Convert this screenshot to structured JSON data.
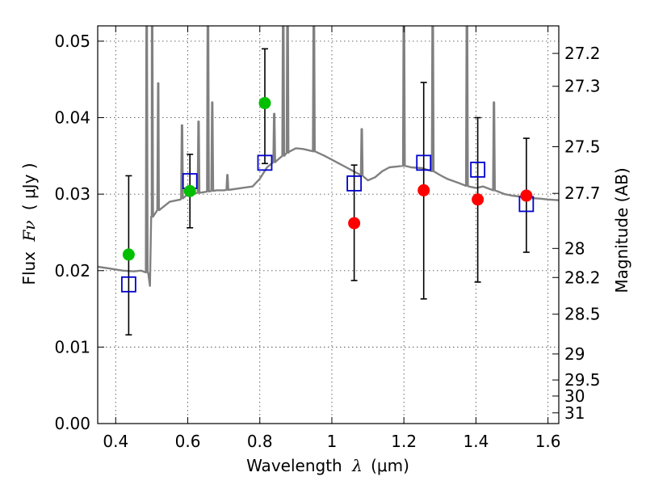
{
  "chart_data": {
    "type": "scatter",
    "xlabel_text": "Wavelength",
    "xlabel_symbol": "λ",
    "xlabel_unit": "(μm)",
    "ylabel_text": "Flux",
    "ylabel_symbol": "Fν",
    "ylabel_unit": "( μJy )",
    "y2label": "Magnitude (AB)",
    "xlim": [
      0.35,
      1.63
    ],
    "ylim": [
      0.0,
      0.052
    ],
    "grid": true,
    "x_ticks": [
      {
        "value": 0.4,
        "label": "0.4"
      },
      {
        "value": 0.6,
        "label": "0.6"
      },
      {
        "value": 0.8,
        "label": "0.8"
      },
      {
        "value": 1.0,
        "label": "1"
      },
      {
        "value": 1.2,
        "label": "1.2"
      },
      {
        "value": 1.4,
        "label": "1.4"
      },
      {
        "value": 1.6,
        "label": "1.6"
      }
    ],
    "y_ticks": [
      {
        "value": 0.0,
        "label": "0.00"
      },
      {
        "value": 0.01,
        "label": "0.01"
      },
      {
        "value": 0.02,
        "label": "0.02"
      },
      {
        "value": 0.03,
        "label": "0.03"
      },
      {
        "value": 0.04,
        "label": "0.04"
      },
      {
        "value": 0.05,
        "label": "0.05"
      }
    ],
    "y2_ticks": [
      {
        "flux": 0.0484,
        "label": "27.2"
      },
      {
        "flux": 0.0441,
        "label": "27.3"
      },
      {
        "flux": 0.0362,
        "label": "27.5"
      },
      {
        "flux": 0.0301,
        "label": "27.7"
      },
      {
        "flux": 0.0229,
        "label": "28"
      },
      {
        "flux": 0.0191,
        "label": "28.2"
      },
      {
        "flux": 0.0143,
        "label": "28.5"
      },
      {
        "flux": 0.0091,
        "label": "29"
      },
      {
        "flux": 0.0057,
        "label": "29.5"
      },
      {
        "flux": 0.0036,
        "label": "30"
      },
      {
        "flux": 0.0014,
        "label": "31"
      }
    ],
    "sed_model": {
      "color": "#808080",
      "continuum": [
        [
          0.35,
          0.0205
        ],
        [
          0.38,
          0.0203
        ],
        [
          0.42,
          0.02
        ],
        [
          0.45,
          0.0199
        ],
        [
          0.47,
          0.02
        ],
        [
          0.49,
          0.0197
        ],
        [
          0.495,
          0.018
        ],
        [
          0.5,
          0.027
        ],
        [
          0.52,
          0.028
        ],
        [
          0.55,
          0.029
        ],
        [
          0.58,
          0.0293
        ],
        [
          0.6,
          0.03
        ],
        [
          0.62,
          0.0301
        ],
        [
          0.65,
          0.0303
        ],
        [
          0.68,
          0.0305
        ],
        [
          0.7,
          0.0305
        ],
        [
          0.72,
          0.0306
        ],
        [
          0.75,
          0.0308
        ],
        [
          0.78,
          0.031
        ],
        [
          0.8,
          0.032
        ],
        [
          0.82,
          0.0335
        ],
        [
          0.85,
          0.0345
        ],
        [
          0.88,
          0.0355
        ],
        [
          0.9,
          0.036
        ],
        [
          0.92,
          0.0359
        ],
        [
          0.95,
          0.0356
        ],
        [
          0.98,
          0.035
        ],
        [
          1.0,
          0.0345
        ],
        [
          1.02,
          0.034
        ],
        [
          1.04,
          0.0335
        ],
        [
          1.06,
          0.033
        ],
        [
          1.08,
          0.0325
        ],
        [
          1.1,
          0.0318
        ],
        [
          1.12,
          0.0322
        ],
        [
          1.14,
          0.033
        ],
        [
          1.16,
          0.0335
        ],
        [
          1.18,
          0.0336
        ],
        [
          1.2,
          0.0337
        ],
        [
          1.22,
          0.0335
        ],
        [
          1.25,
          0.0334
        ],
        [
          1.28,
          0.033
        ],
        [
          1.3,
          0.0325
        ],
        [
          1.32,
          0.032
        ],
        [
          1.35,
          0.0315
        ],
        [
          1.38,
          0.031
        ],
        [
          1.4,
          0.0308
        ],
        [
          1.42,
          0.031
        ],
        [
          1.45,
          0.0305
        ],
        [
          1.48,
          0.03
        ],
        [
          1.5,
          0.0298
        ],
        [
          1.52,
          0.0297
        ],
        [
          1.55,
          0.0295
        ],
        [
          1.58,
          0.0294
        ],
        [
          1.6,
          0.0293
        ],
        [
          1.63,
          0.0292
        ]
      ],
      "emission_lines": [
        {
          "wavelength": 0.486,
          "peak": 0.058
        },
        {
          "wavelength": 0.501,
          "peak": 0.058
        },
        {
          "wavelength": 0.518,
          "peak": 0.0445
        },
        {
          "wavelength": 0.584,
          "peak": 0.039
        },
        {
          "wavelength": 0.63,
          "peak": 0.0395
        },
        {
          "wavelength": 0.656,
          "peak": 0.058
        },
        {
          "wavelength": 0.668,
          "peak": 0.042
        },
        {
          "wavelength": 0.71,
          "peak": 0.0325
        },
        {
          "wavelength": 0.84,
          "peak": 0.0405
        },
        {
          "wavelength": 0.865,
          "peak": 0.058
        },
        {
          "wavelength": 0.877,
          "peak": 0.058
        },
        {
          "wavelength": 0.95,
          "peak": 0.058
        },
        {
          "wavelength": 1.083,
          "peak": 0.0385
        },
        {
          "wavelength": 1.2,
          "peak": 0.058
        },
        {
          "wavelength": 1.28,
          "peak": 0.058
        },
        {
          "wavelength": 1.375,
          "peak": 0.058
        },
        {
          "wavelength": 1.45,
          "peak": 0.042
        }
      ]
    },
    "observed_detections": {
      "color": "#00bf00",
      "points": [
        {
          "x": 0.436,
          "y": 0.0221
        },
        {
          "x": 0.606,
          "y": 0.0304
        },
        {
          "x": 0.814,
          "y": 0.0419
        }
      ]
    },
    "observed_upper": {
      "color": "#ff0000",
      "points": [
        {
          "x": 1.062,
          "y": 0.0262
        },
        {
          "x": 1.255,
          "y": 0.0305
        },
        {
          "x": 1.405,
          "y": 0.0293
        },
        {
          "x": 1.54,
          "y": 0.0298
        }
      ]
    },
    "model_photometry": {
      "color": "#0000cc",
      "points": [
        {
          "x": 0.436,
          "y": 0.0182
        },
        {
          "x": 0.606,
          "y": 0.0317
        },
        {
          "x": 0.814,
          "y": 0.0341
        },
        {
          "x": 1.062,
          "y": 0.0314
        },
        {
          "x": 1.255,
          "y": 0.0341
        },
        {
          "x": 1.405,
          "y": 0.0332
        },
        {
          "x": 1.54,
          "y": 0.0287
        }
      ]
    },
    "error_bars": [
      {
        "x": 0.436,
        "low": 0.0116,
        "high": 0.0324
      },
      {
        "x": 0.606,
        "low": 0.0256,
        "high": 0.0352
      },
      {
        "x": 0.814,
        "low": 0.034,
        "high": 0.049
      },
      {
        "x": 1.062,
        "low": 0.0187,
        "high": 0.0338
      },
      {
        "x": 1.255,
        "low": 0.0163,
        "high": 0.0446
      },
      {
        "x": 1.405,
        "low": 0.0185,
        "high": 0.04
      },
      {
        "x": 1.54,
        "low": 0.0224,
        "high": 0.0373
      }
    ]
  }
}
